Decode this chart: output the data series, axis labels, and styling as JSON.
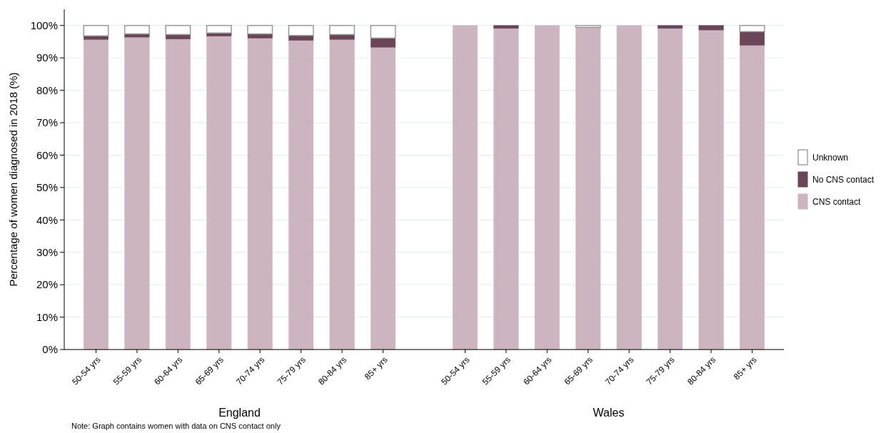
{
  "chart_data": {
    "type": "bar",
    "stacked": true,
    "ylabel": "Percentage of women diagnosed in 2018 (%)",
    "categories": [
      "50-54 yrs",
      "55-59 yrs",
      "60-64 yrs",
      "65-69 yrs",
      "70-74 yrs",
      "75-79 yrs",
      "80-84 yrs",
      "85+ yrs",
      null,
      "50-54 yrs",
      "55-59 yrs",
      "60-64 yrs",
      "65-69 yrs",
      "70-74 yrs",
      "75-79 yrs",
      "80-84 yrs",
      "85+ yrs"
    ],
    "series": [
      {
        "name": "CNS contact",
        "color": "#cdb4c1",
        "values": [
          95.7,
          96.4,
          95.8,
          96.7,
          96.1,
          95.4,
          95.7,
          93.3,
          null,
          100,
          99.1,
          100,
          99.4,
          100,
          99.1,
          98.6,
          93.9
        ]
      },
      {
        "name": "No CNS contact",
        "color": "#6a4558",
        "values": [
          1.1,
          1.0,
          1.4,
          1.0,
          1.3,
          1.5,
          1.5,
          2.8,
          null,
          0,
          0.9,
          0,
          0,
          0,
          0.9,
          1.4,
          4.2
        ]
      },
      {
        "name": "Unknown",
        "color": "#ffffff",
        "values": [
          3.2,
          2.6,
          2.8,
          2.3,
          2.6,
          3.1,
          2.8,
          3.9,
          null,
          0,
          0,
          0,
          0.6,
          0,
          0,
          0,
          1.9
        ]
      }
    ],
    "ylim": [
      0,
      105
    ],
    "yticks": [
      {
        "value": 0,
        "label": "0%"
      },
      {
        "value": 10,
        "label": "10%"
      },
      {
        "value": 20,
        "label": "20%"
      },
      {
        "value": 30,
        "label": "30%"
      },
      {
        "value": 40,
        "label": "40%"
      },
      {
        "value": 50,
        "label": "50%"
      },
      {
        "value": 60,
        "label": "60%"
      },
      {
        "value": 70,
        "label": "70%"
      },
      {
        "value": 80,
        "label": "80%"
      },
      {
        "value": 90,
        "label": "90%"
      },
      {
        "value": 100,
        "label": "100%"
      }
    ],
    "grid": "y",
    "legend": "right",
    "annotations": [
      "England",
      "Wales",
      "Note: Graph contains women with data on CNS contact only"
    ]
  }
}
